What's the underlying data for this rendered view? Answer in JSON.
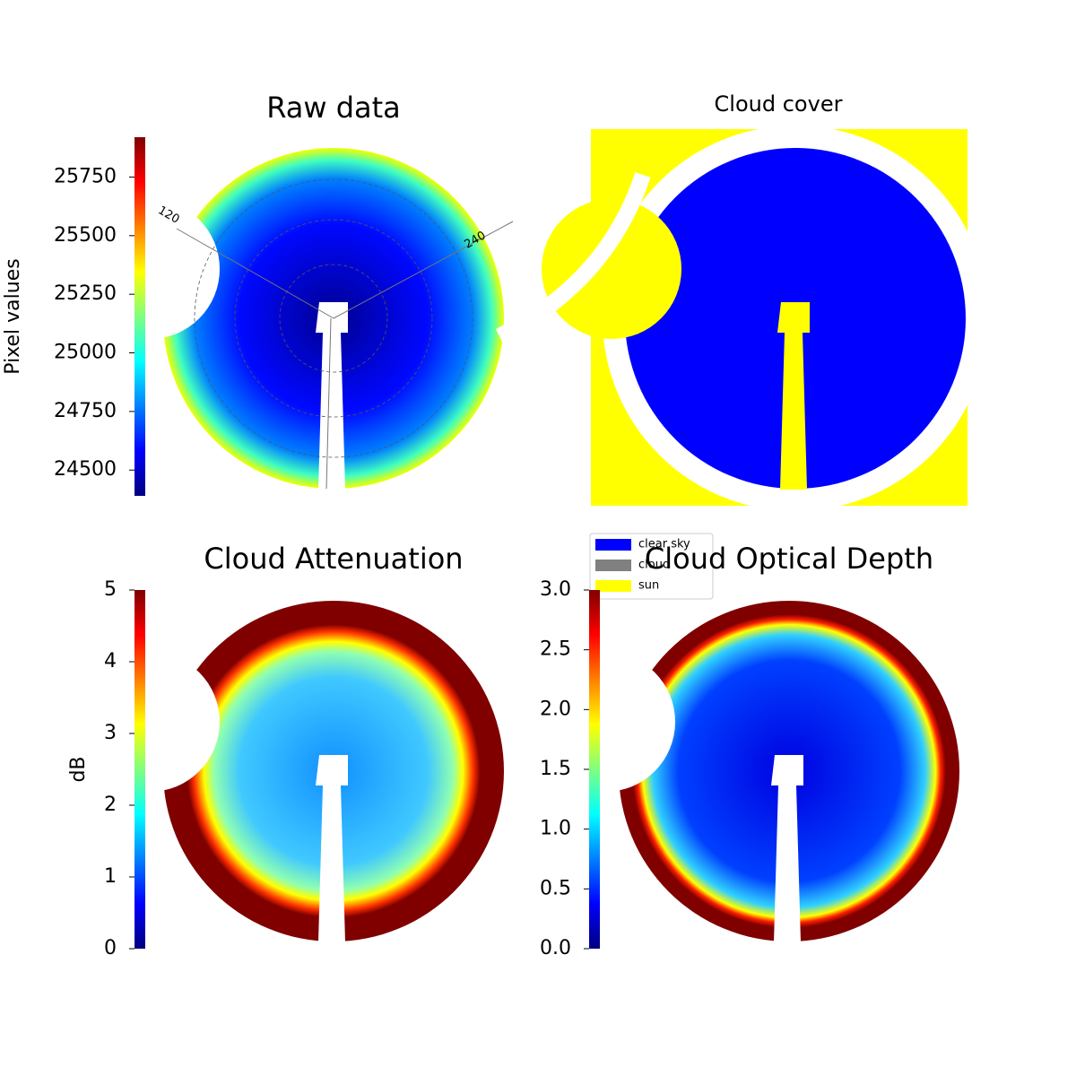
{
  "chart_data": [
    {
      "type": "image",
      "title": "Raw data",
      "colormap": "jet",
      "colorbar": {
        "label": "Pixel values",
        "ylim": [
          24390,
          25920
        ],
        "yticks": [
          24500,
          24750,
          25000,
          25250,
          25500,
          25750
        ]
      },
      "annotations": [
        "120",
        "240"
      ]
    },
    {
      "type": "image",
      "title": "Cloud cover",
      "legend": [
        {
          "name": "clear sky",
          "color": "#0000ff"
        },
        {
          "name": "cloud",
          "color": "#808080"
        },
        {
          "name": "sun",
          "color": "#ffff00"
        }
      ]
    },
    {
      "type": "image",
      "title": "Cloud Attenuation",
      "colormap": "jet",
      "colorbar": {
        "label": "dB",
        "ylim": [
          0,
          5
        ],
        "yticks": [
          0,
          1,
          2,
          3,
          4,
          5
        ]
      }
    },
    {
      "type": "image",
      "title": "Cloud Optical Depth",
      "colormap": "jet",
      "colorbar": {
        "ylim": [
          0,
          3
        ],
        "yticks": [
          {
            "value": 0,
            "label": "0.0"
          },
          {
            "value": 0.5,
            "label": "0.5"
          },
          {
            "value": 1,
            "label": "1.0"
          },
          {
            "value": 1.5,
            "label": "1.5"
          },
          {
            "value": 2,
            "label": "2.0"
          },
          {
            "value": 2.5,
            "label": "2.5"
          },
          {
            "value": 3,
            "label": "3.0"
          }
        ]
      }
    }
  ]
}
